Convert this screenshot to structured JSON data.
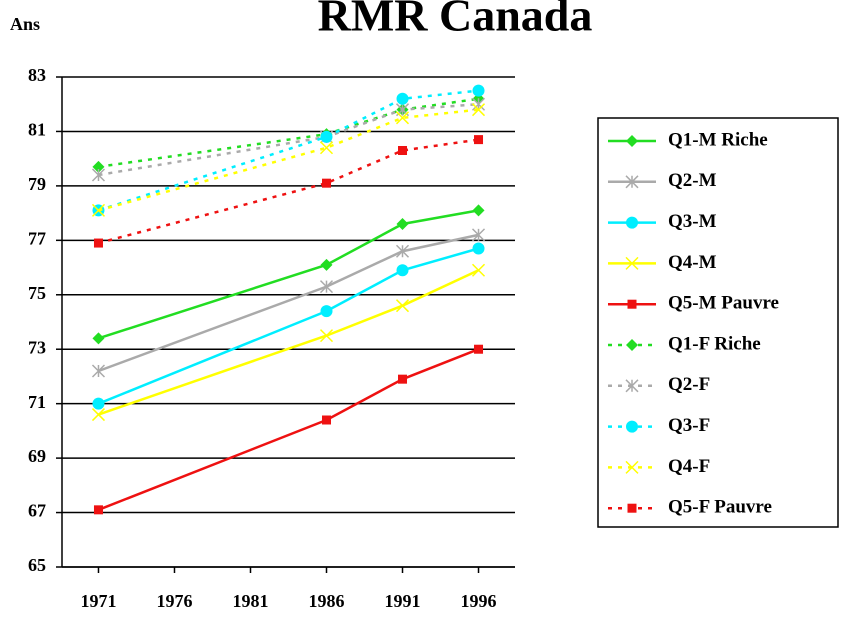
{
  "chart_data": {
    "type": "line",
    "title": "RMR Canada",
    "y_label": "Ans",
    "x": [
      1971,
      1986,
      1991,
      1996
    ],
    "xlim": [
      1968.6,
      1998.4
    ],
    "xticks": [
      1971,
      1976,
      1981,
      1986,
      1991,
      1996
    ],
    "ylim": [
      65,
      83
    ],
    "yticks": [
      65,
      67,
      69,
      71,
      73,
      75,
      77,
      79,
      81,
      83
    ],
    "grid": true,
    "series": [
      {
        "name": "Q1-M Riche",
        "color": "#22dd22",
        "marker": "diamond",
        "dashed": false,
        "values": [
          73.4,
          76.1,
          77.6,
          78.1
        ]
      },
      {
        "name": "Q2-M",
        "color": "#aaaaaa",
        "marker": "star",
        "dashed": false,
        "values": [
          72.2,
          75.3,
          76.6,
          77.2
        ]
      },
      {
        "name": "Q3-M",
        "color": "#00eeff",
        "marker": "circle",
        "dashed": false,
        "values": [
          71.0,
          74.4,
          75.9,
          76.7
        ]
      },
      {
        "name": "Q4-M",
        "color": "#ffff00",
        "marker": "x",
        "dashed": false,
        "values": [
          70.6,
          73.5,
          74.6,
          75.9
        ]
      },
      {
        "name": "Q5-M Pauvre",
        "color": "#ee1111",
        "marker": "square",
        "dashed": false,
        "values": [
          67.1,
          70.4,
          71.9,
          73.0
        ]
      },
      {
        "name": "Q1-F Riche",
        "color": "#22dd22",
        "marker": "diamond",
        "dashed": true,
        "values": [
          79.7,
          80.9,
          81.8,
          82.2
        ]
      },
      {
        "name": "Q2-F",
        "color": "#aaaaaa",
        "marker": "star",
        "dashed": true,
        "values": [
          79.4,
          80.8,
          81.8,
          82.0
        ]
      },
      {
        "name": "Q3-F",
        "color": "#00eeff",
        "marker": "circle",
        "dashed": true,
        "values": [
          78.1,
          80.8,
          82.2,
          82.5
        ]
      },
      {
        "name": "Q4-F",
        "color": "#ffff00",
        "marker": "x",
        "dashed": true,
        "values": [
          78.1,
          80.4,
          81.5,
          81.8
        ]
      },
      {
        "name": "Q5-F Pauvre",
        "color": "#ee1111",
        "marker": "square",
        "dashed": true,
        "values": [
          76.9,
          79.1,
          80.3,
          80.7
        ]
      }
    ]
  }
}
